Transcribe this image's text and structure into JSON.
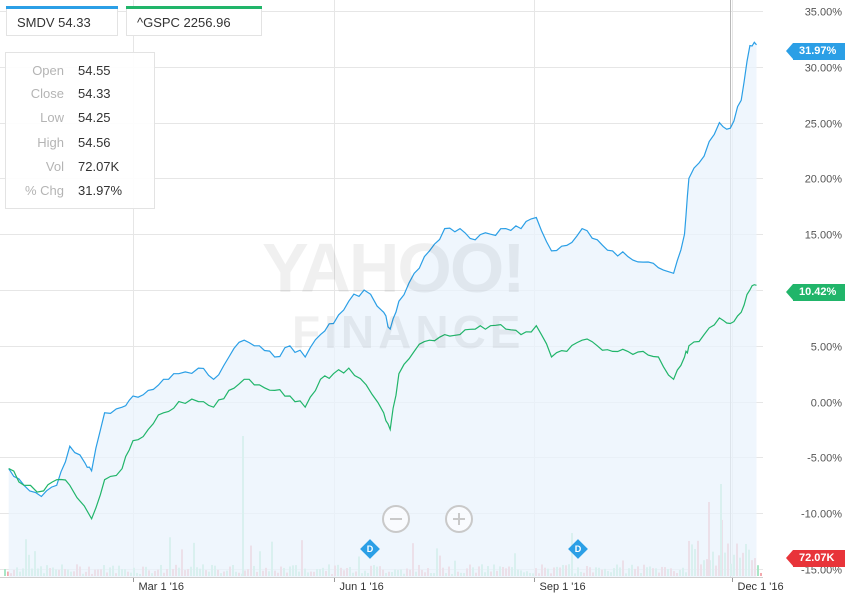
{
  "legend": {
    "smdv": {
      "label": "SMDV 54.33",
      "color": "#2b9fe6"
    },
    "gspc": {
      "label": "^GSPC 2256.96",
      "color": "#21b56a"
    }
  },
  "tooltip": {
    "rows": [
      {
        "label": "Open",
        "value": "54.55"
      },
      {
        "label": "Close",
        "value": "54.33"
      },
      {
        "label": "Low",
        "value": "54.25"
      },
      {
        "label": "High",
        "value": "54.56"
      },
      {
        "label": "Vol",
        "value": "72.07K"
      },
      {
        "label": "% Chg",
        "value": "31.97%"
      }
    ]
  },
  "watermark": {
    "line1": "YAHOO!",
    "line2": "FINANCE"
  },
  "flags": {
    "smdv": {
      "text": "31.97%",
      "color": "#2b9fe6"
    },
    "gspc": {
      "text": "10.42%",
      "color": "#21b56a"
    },
    "volume": {
      "text": "72.07K",
      "color": "#e8343a"
    }
  },
  "dividend_markers": [
    {
      "label": "D",
      "date": "2016-06-01"
    },
    {
      "label": "D",
      "date": "2016-09-01"
    }
  ],
  "chart_data": {
    "type": "line",
    "x_range": [
      "2015-12-31",
      "2016-12-15"
    ],
    "ylim": [
      -15,
      35
    ],
    "y_ticks": [
      35,
      30,
      25,
      20,
      15,
      10,
      5,
      0,
      -5,
      -10,
      -15
    ],
    "y_tick_labels": [
      "35.00%",
      "30.00%",
      "25.00%",
      "20.00%",
      "15.00%",
      "10.00%",
      "5.00%",
      "0.00%",
      "-5.00%",
      "-10.00%",
      "-15.00%"
    ],
    "x_ticks": [
      "2016-03-01",
      "2016-06-01",
      "2016-09-01",
      "2016-12-01"
    ],
    "x_tick_labels": [
      "Mar 1 '16",
      "Jun 1 '16",
      "Sep 1 '16",
      "Dec 1 '16"
    ],
    "grid": true,
    "series": [
      {
        "name": "SMDV",
        "color": "#2b9fe6",
        "fill": true,
        "points": [
          [
            "2016-01-04",
            -6.0
          ],
          [
            "2016-01-11",
            -7.5
          ],
          [
            "2016-01-19",
            -8.5
          ],
          [
            "2016-01-26",
            -7.5
          ],
          [
            "2016-02-01",
            -4.0
          ],
          [
            "2016-02-08",
            -5.5
          ],
          [
            "2016-02-11",
            -6.2
          ],
          [
            "2016-02-17",
            -1.0
          ],
          [
            "2016-02-25",
            -0.5
          ],
          [
            "2016-03-01",
            0.5
          ],
          [
            "2016-03-08",
            1.0
          ],
          [
            "2016-03-15",
            2.0
          ],
          [
            "2016-03-22",
            2.5
          ],
          [
            "2016-03-31",
            3.0
          ],
          [
            "2016-04-07",
            2.0
          ],
          [
            "2016-04-14",
            4.0
          ],
          [
            "2016-04-21",
            5.5
          ],
          [
            "2016-04-28",
            5.0
          ],
          [
            "2016-05-05",
            4.0
          ],
          [
            "2016-05-12",
            5.0
          ],
          [
            "2016-05-19",
            4.0
          ],
          [
            "2016-05-26",
            6.0
          ],
          [
            "2016-06-01",
            7.0
          ],
          [
            "2016-06-08",
            9.0
          ],
          [
            "2016-06-15",
            10.0
          ],
          [
            "2016-06-24",
            8.0
          ],
          [
            "2016-06-27",
            6.5
          ],
          [
            "2016-07-01",
            9.0
          ],
          [
            "2016-07-08",
            11.5
          ],
          [
            "2016-07-15",
            13.5
          ],
          [
            "2016-07-22",
            15.5
          ],
          [
            "2016-07-29",
            15.5
          ],
          [
            "2016-08-05",
            14.5
          ],
          [
            "2016-08-12",
            15.0
          ],
          [
            "2016-08-19",
            15.5
          ],
          [
            "2016-08-26",
            15.5
          ],
          [
            "2016-09-02",
            16.5
          ],
          [
            "2016-09-09",
            13.5
          ],
          [
            "2016-09-16",
            14.0
          ],
          [
            "2016-09-23",
            15.5
          ],
          [
            "2016-09-30",
            14.5
          ],
          [
            "2016-10-07",
            13.5
          ],
          [
            "2016-10-14",
            13.0
          ],
          [
            "2016-10-21",
            12.5
          ],
          [
            "2016-10-28",
            12.0
          ],
          [
            "2016-11-04",
            11.5
          ],
          [
            "2016-11-09",
            15.0
          ],
          [
            "2016-11-11",
            20.0
          ],
          [
            "2016-11-18",
            22.0
          ],
          [
            "2016-11-25",
            25.0
          ],
          [
            "2016-11-30",
            24.5
          ],
          [
            "2016-12-05",
            27.0
          ],
          [
            "2016-12-09",
            31.9
          ],
          [
            "2016-12-12",
            31.97
          ]
        ]
      },
      {
        "name": "^GSPC",
        "color": "#21b56a",
        "fill": false,
        "points": [
          [
            "2016-01-04",
            -6.0
          ],
          [
            "2016-01-11",
            -7.5
          ],
          [
            "2016-01-20",
            -8.0
          ],
          [
            "2016-01-26",
            -7.0
          ],
          [
            "2016-02-01",
            -7.5
          ],
          [
            "2016-02-11",
            -10.5
          ],
          [
            "2016-02-17",
            -7.0
          ],
          [
            "2016-02-25",
            -6.0
          ],
          [
            "2016-03-01",
            -3.5
          ],
          [
            "2016-03-08",
            -2.5
          ],
          [
            "2016-03-15",
            -1.0
          ],
          [
            "2016-03-22",
            0.0
          ],
          [
            "2016-03-31",
            0.0
          ],
          [
            "2016-04-07",
            -0.5
          ],
          [
            "2016-04-14",
            1.0
          ],
          [
            "2016-04-21",
            2.0
          ],
          [
            "2016-04-28",
            1.5
          ],
          [
            "2016-05-05",
            1.0
          ],
          [
            "2016-05-12",
            0.5
          ],
          [
            "2016-05-19",
            -0.5
          ],
          [
            "2016-05-26",
            2.0
          ],
          [
            "2016-06-01",
            2.5
          ],
          [
            "2016-06-08",
            3.0
          ],
          [
            "2016-06-16",
            1.5
          ],
          [
            "2016-06-24",
            -1.0
          ],
          [
            "2016-06-27",
            -2.5
          ],
          [
            "2016-07-01",
            2.5
          ],
          [
            "2016-07-08",
            4.5
          ],
          [
            "2016-07-15",
            5.5
          ],
          [
            "2016-07-22",
            6.0
          ],
          [
            "2016-07-29",
            6.0
          ],
          [
            "2016-08-05",
            6.5
          ],
          [
            "2016-08-12",
            6.8
          ],
          [
            "2016-08-19",
            6.5
          ],
          [
            "2016-08-26",
            6.0
          ],
          [
            "2016-09-02",
            6.8
          ],
          [
            "2016-09-09",
            4.0
          ],
          [
            "2016-09-16",
            4.5
          ],
          [
            "2016-09-23",
            5.5
          ],
          [
            "2016-09-30",
            5.0
          ],
          [
            "2016-10-07",
            4.5
          ],
          [
            "2016-10-14",
            4.5
          ],
          [
            "2016-10-21",
            4.5
          ],
          [
            "2016-10-28",
            4.0
          ],
          [
            "2016-11-04",
            2.0
          ],
          [
            "2016-11-09",
            4.0
          ],
          [
            "2016-11-11",
            5.0
          ],
          [
            "2016-11-18",
            6.0
          ],
          [
            "2016-11-25",
            7.5
          ],
          [
            "2016-11-30",
            7.0
          ],
          [
            "2016-12-05",
            8.0
          ],
          [
            "2016-12-09",
            10.0
          ],
          [
            "2016-12-12",
            10.42
          ]
        ]
      }
    ]
  }
}
